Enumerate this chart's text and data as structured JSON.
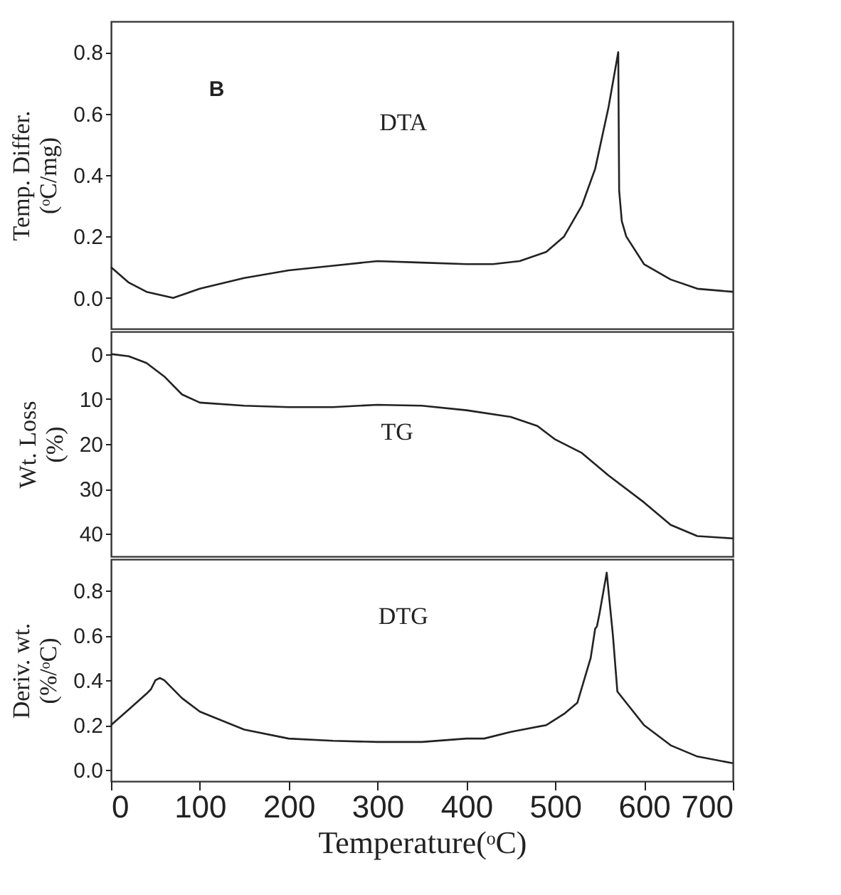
{
  "chart_data": [
    {
      "type": "line",
      "ylabel": "Temp. Differ. (ᵒC/mg)",
      "annotations": [
        "B",
        "DTA"
      ],
      "xlim": [
        0,
        700
      ],
      "xticks": [
        0,
        100,
        200,
        300,
        400,
        500,
        600,
        700
      ],
      "ylim": [
        -0.1,
        0.9
      ],
      "yticks": [
        {
          "value": 0,
          "label": "0.0"
        },
        0.2,
        0.4,
        0.6,
        0.8
      ],
      "tick_labels": "y",
      "grid": false,
      "x": [
        0,
        20,
        40,
        70,
        100,
        150,
        200,
        250,
        300,
        350,
        400,
        430,
        460,
        490,
        510,
        530,
        545,
        560,
        571,
        572,
        575,
        580,
        600,
        630,
        660,
        700
      ],
      "series": [
        {
          "color": "#222222",
          "values": [
            0.1,
            0.05,
            0.02,
            0.0,
            0.03,
            0.065,
            0.09,
            0.105,
            0.12,
            0.115,
            0.11,
            0.11,
            0.12,
            0.15,
            0.2,
            0.3,
            0.42,
            0.62,
            0.8,
            0.35,
            0.25,
            0.2,
            0.11,
            0.06,
            0.03,
            0.02
          ]
        }
      ]
    },
    {
      "type": "line",
      "ylabel": "Wt. Loss (%)",
      "annotations": [
        "TG"
      ],
      "xlim": [
        0,
        700
      ],
      "xticks": [
        0,
        100,
        200,
        300,
        400,
        500,
        600,
        700
      ],
      "ylim": [
        45,
        -5
      ],
      "yticks": [
        0,
        10,
        20,
        30,
        40
      ],
      "tick_labels": "y",
      "grid": false,
      "x": [
        0,
        20,
        40,
        60,
        80,
        100,
        150,
        200,
        250,
        300,
        350,
        400,
        450,
        480,
        500,
        530,
        560,
        600,
        630,
        660,
        700
      ],
      "series": [
        {
          "color": "#222222",
          "values": [
            0,
            0.5,
            2,
            5,
            9,
            10.8,
            11.5,
            11.8,
            11.8,
            11.3,
            11.5,
            12.5,
            14,
            16,
            19,
            22,
            27,
            33,
            38,
            40.5,
            41
          ]
        }
      ]
    },
    {
      "type": "line",
      "xlabel": "Temperature(ᵒC)",
      "ylabel": "Deriv. wt. (%/ᵒC)",
      "annotations": [
        "DTG"
      ],
      "xlim": [
        0,
        700
      ],
      "xticks": [
        0,
        100,
        200,
        300,
        400,
        500,
        600,
        700
      ],
      "ylim": [
        -0.05,
        0.94
      ],
      "yticks": [
        {
          "value": 0,
          "label": "0.0"
        },
        0.2,
        0.4,
        0.6,
        0.8
      ],
      "grid": false,
      "x": [
        0,
        20,
        40,
        45,
        50,
        55,
        60,
        80,
        100,
        150,
        200,
        250,
        300,
        350,
        400,
        420,
        450,
        490,
        510,
        525,
        540,
        545,
        547,
        550,
        558,
        565,
        570,
        580,
        600,
        630,
        660,
        700
      ],
      "series": [
        {
          "color": "#222222",
          "values": [
            0.2,
            0.27,
            0.34,
            0.36,
            0.4,
            0.41,
            0.4,
            0.32,
            0.26,
            0.18,
            0.14,
            0.13,
            0.125,
            0.125,
            0.14,
            0.14,
            0.17,
            0.2,
            0.25,
            0.3,
            0.5,
            0.63,
            0.64,
            0.7,
            0.88,
            0.6,
            0.35,
            0.3,
            0.2,
            0.11,
            0.06,
            0.03
          ]
        }
      ]
    }
  ]
}
